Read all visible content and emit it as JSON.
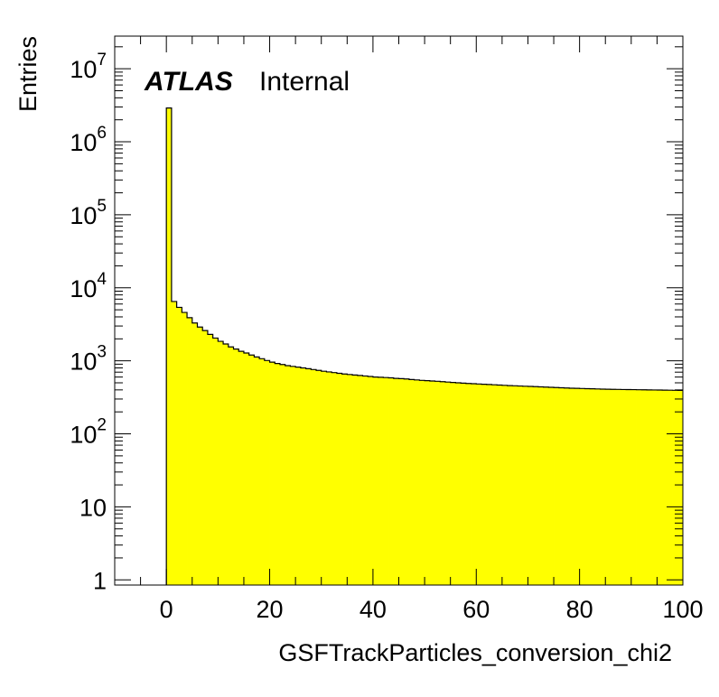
{
  "chart_data": {
    "type": "histogram",
    "title": "",
    "xlabel": "GSFTrackParticles_conversion_chi2",
    "ylabel": "Entries",
    "xlim": [
      -10,
      100
    ],
    "ylim": [
      0.85,
      28000000
    ],
    "yscale": "log",
    "grid": false,
    "fill_color": "#ffff00",
    "line_color": "#000000",
    "x_ticks": [
      {
        "value": 0,
        "label": "0"
      },
      {
        "value": 20,
        "label": "20"
      },
      {
        "value": 40,
        "label": "40"
      },
      {
        "value": 60,
        "label": "60"
      },
      {
        "value": 80,
        "label": "80"
      },
      {
        "value": 100,
        "label": "100"
      }
    ],
    "y_ticks": [
      {
        "value": 1,
        "base": "1",
        "exp": ""
      },
      {
        "value": 10,
        "base": "10",
        "exp": ""
      },
      {
        "value": 100,
        "base": "10",
        "exp": "2"
      },
      {
        "value": 1000,
        "base": "10",
        "exp": "3"
      },
      {
        "value": 10000,
        "base": "10",
        "exp": "4"
      },
      {
        "value": 100000,
        "base": "10",
        "exp": "5"
      },
      {
        "value": 1000000,
        "base": "10",
        "exp": "6"
      },
      {
        "value": 10000000,
        "base": "10",
        "exp": "7"
      }
    ],
    "bin_width": 1,
    "bin_start": 0,
    "values": [
      2900000,
      6500,
      5400,
      4600,
      3900,
      3300,
      2900,
      2600,
      2300,
      2050,
      1850,
      1700,
      1550,
      1450,
      1350,
      1280,
      1200,
      1130,
      1070,
      1010,
      960,
      920,
      890,
      860,
      840,
      820,
      800,
      780,
      760,
      740,
      720,
      705,
      690,
      675,
      660,
      650,
      640,
      630,
      620,
      610,
      600,
      595,
      590,
      585,
      575,
      570,
      565,
      555,
      548,
      540,
      535,
      530,
      525,
      518,
      512,
      506,
      500,
      495,
      490,
      486,
      482,
      478,
      474,
      470,
      466,
      462,
      458,
      455,
      452,
      449,
      446,
      443,
      440,
      437,
      434,
      431,
      428,
      425,
      422,
      420,
      418,
      416,
      414,
      412,
      410,
      408,
      407,
      406,
      405,
      404,
      403,
      402,
      401,
      400,
      399,
      398,
      397,
      396,
      395,
      394
    ],
    "annotations": {
      "experiment": "ATLAS",
      "status": "Internal"
    }
  }
}
